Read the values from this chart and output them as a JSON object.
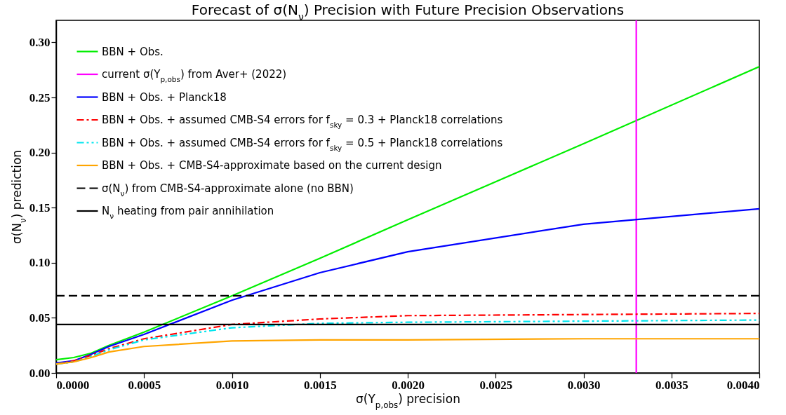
{
  "chart_data": {
    "type": "line",
    "title": "Forecast of σ(N$_{ν}$) Precision with Future Precision Observations",
    "xlabel": "σ(Y$_{p,obs}$) precision",
    "ylabel": "σ(N$_{ν}$) prediction",
    "x": [
      0,
      0.0001,
      0.0002,
      0.0003,
      0.0005,
      0.001,
      0.0015,
      0.002,
      0.003,
      0.004
    ],
    "series": [
      {
        "name": "BBN + Obs.",
        "color": "#00ee00",
        "line_style": "solid",
        "values": [
          0.012,
          0.014,
          0.018,
          0.025,
          0.037,
          0.07,
          0.104,
          0.139,
          0.208,
          0.278
        ]
      },
      {
        "name": "current σ(Y$_{p,obs}$) from Aver+ (2022)",
        "color": "#ff00ff",
        "line_style": "solid",
        "x": [
          0.0033,
          0.0033
        ],
        "values": [
          0,
          0.32
        ]
      },
      {
        "name": "BBN + Obs. + Planck18",
        "color": "#0000ff",
        "line_style": "solid",
        "values": [
          0.009,
          0.011,
          0.017,
          0.024,
          0.035,
          0.066,
          0.091,
          0.11,
          0.135,
          0.149
        ]
      },
      {
        "name": "BBN + Obs. + assumed CMB-S4 errors for f$_{sky}$ = 0.3 + Planck18 correlations",
        "color": "#ff0000",
        "line_style": "dashdot",
        "values": [
          0.008,
          0.011,
          0.016,
          0.022,
          0.031,
          0.044,
          0.049,
          0.052,
          0.053,
          0.054
        ]
      },
      {
        "name": "BBN + Obs. + assumed CMB-S4 errors for f$_{sky}$ = 0.5 + Planck18 correlations",
        "color": "#00e5ee",
        "line_style": "dashdotdot",
        "values": [
          0.008,
          0.01,
          0.015,
          0.021,
          0.03,
          0.041,
          0.045,
          0.046,
          0.047,
          0.048
        ]
      },
      {
        "name": "BBN + Obs. + CMB-S4-approximate based on the current design",
        "color": "#ffa500",
        "line_style": "solid",
        "values": [
          0.008,
          0.01,
          0.014,
          0.019,
          0.024,
          0.029,
          0.03,
          0.03,
          0.031,
          0.031
        ]
      },
      {
        "name": "σ(N$_{ν}$) from CMB-S4-approximate alone (no BBN)",
        "color": "#000000",
        "line_style": "dashed",
        "x": [
          0,
          0.004
        ],
        "values": [
          0.07,
          0.07
        ]
      },
      {
        "name": "N$_{ν}$ heating from pair annihilation",
        "color": "#000000",
        "line_style": "solid",
        "x": [
          0,
          0.004
        ],
        "values": [
          0.044,
          0.044
        ]
      }
    ],
    "xlim": [
      0,
      0.004
    ],
    "ylim": [
      0,
      0.32
    ],
    "xticks": [
      {
        "value": 0,
        "label": "0.0000"
      },
      {
        "value": 0.0005,
        "label": "0.0005"
      },
      {
        "value": 0.001,
        "label": "0.0010"
      },
      {
        "value": 0.0015,
        "label": "0.0015"
      },
      {
        "value": 0.002,
        "label": "0.0020"
      },
      {
        "value": 0.0025,
        "label": "0.0025"
      },
      {
        "value": 0.003,
        "label": "0.0030"
      },
      {
        "value": 0.0035,
        "label": "0.0035"
      },
      {
        "value": 0.004,
        "label": "0.0040"
      }
    ],
    "yticks": [
      {
        "value": 0,
        "label": "0.00"
      },
      {
        "value": 0.05,
        "label": "0.05"
      },
      {
        "value": 0.1,
        "label": "0.10"
      },
      {
        "value": 0.15,
        "label": "0.15"
      },
      {
        "value": 0.2,
        "label": "0.20"
      },
      {
        "value": 0.25,
        "label": "0.25"
      },
      {
        "value": 0.3,
        "label": "0.30"
      }
    ],
    "grid": false,
    "legend": "top left",
    "marker": "none"
  }
}
